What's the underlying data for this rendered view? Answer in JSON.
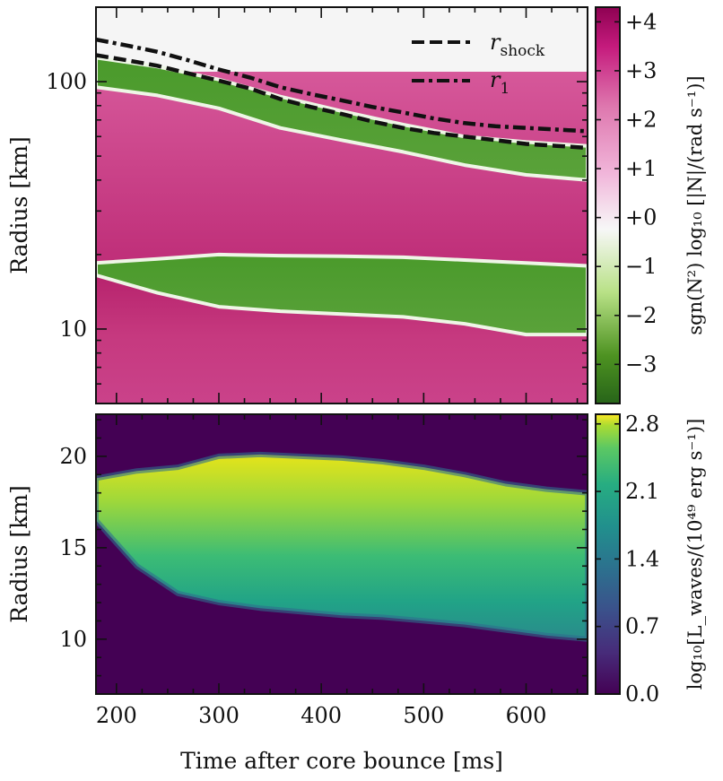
{
  "chart_data": [
    {
      "type": "heatmap",
      "panel": "top",
      "ylabel": "Radius [km]",
      "yscale": "log",
      "xlim": [
        180,
        660
      ],
      "ylim": [
        5,
        200
      ],
      "yticks": [
        {
          "value": 10,
          "label": "10"
        },
        {
          "value": 100,
          "label": "100"
        }
      ],
      "colorbar": {
        "label": "sgn(N²) log₁₀ [|N|/(rad s⁻¹)]",
        "range": [
          -3.8,
          4.3
        ],
        "colormap": "PiYG_r",
        "ticks": [
          {
            "value": 4,
            "label": "+4"
          },
          {
            "value": 3,
            "label": "+3"
          },
          {
            "value": 2,
            "label": "+2"
          },
          {
            "value": 1,
            "label": "+1"
          },
          {
            "value": 0,
            "label": "+0"
          },
          {
            "value": -1,
            "label": "−1"
          },
          {
            "value": -2,
            "label": "−2"
          },
          {
            "value": -3,
            "label": "−3"
          }
        ]
      },
      "regions": [
        {
          "name": "outer convective layer (negative N²)",
          "value": -2.5,
          "x": [
            180,
            240,
            300,
            360,
            420,
            480,
            540,
            600,
            660
          ],
          "lower": [
            95,
            88,
            78,
            65,
            58,
            52,
            46,
            42,
            40
          ],
          "upper": [
            125,
            115,
            102,
            87,
            76,
            67,
            60,
            57,
            55
          ]
        },
        {
          "name": "inner convective layer (negative N²)",
          "value": -2.5,
          "x": [
            180,
            240,
            300,
            360,
            420,
            480,
            540,
            600,
            660
          ],
          "lower": [
            16.5,
            14,
            12.3,
            11.8,
            11.5,
            11.2,
            10.5,
            9.5,
            9.5
          ],
          "upper": [
            18.5,
            19.2,
            20,
            19.8,
            19.7,
            19.5,
            19,
            18.5,
            18
          ]
        }
      ],
      "series": [
        {
          "name": "r_shock",
          "style": "dashed",
          "x": [
            180,
            210,
            240,
            270,
            300,
            330,
            360,
            390,
            420,
            450,
            480,
            510,
            540,
            570,
            600,
            630,
            660
          ],
          "y": [
            128,
            122,
            116,
            108,
            101,
            94,
            85,
            79,
            74,
            69,
            65,
            62,
            60,
            58,
            56,
            55,
            54
          ]
        },
        {
          "name": "r_1",
          "style": "dashdot",
          "x": [
            180,
            210,
            240,
            270,
            300,
            330,
            360,
            390,
            420,
            450,
            480,
            510,
            540,
            570,
            600,
            630,
            660
          ],
          "y": [
            148,
            140,
            132,
            122,
            112,
            104,
            95,
            89,
            84,
            79,
            75,
            71,
            68,
            66,
            65,
            64,
            63
          ]
        }
      ],
      "legend": {
        "placement": "top-right",
        "entries": [
          {
            "style": "dashed",
            "symbol": "r",
            "subscript": "shock"
          },
          {
            "style": "dashdot",
            "symbol": "r",
            "subscript": "1"
          }
        ]
      }
    },
    {
      "type": "heatmap",
      "panel": "bottom",
      "xlabel": "Time after core bounce [ms]",
      "ylabel": "Radius [km]",
      "xlim": [
        180,
        660
      ],
      "ylim": [
        7,
        22.3
      ],
      "xticks": [
        200,
        300,
        400,
        500,
        600
      ],
      "yticks": [
        10,
        15,
        20
      ],
      "colorbar": {
        "label": "log₁₀[L_waves/(10⁴⁹ erg s⁻¹)]",
        "range": [
          0,
          2.9
        ],
        "colormap": "viridis",
        "ticks": [
          {
            "value": 0,
            "label": "0.0"
          },
          {
            "value": 0.7,
            "label": "0.7"
          },
          {
            "value": 1.4,
            "label": "1.4"
          },
          {
            "value": 2.1,
            "label": "2.1"
          },
          {
            "value": 2.8,
            "label": "2.8"
          }
        ]
      },
      "regions": [
        {
          "name": "wave luminosity region",
          "x": [
            180,
            220,
            260,
            300,
            340,
            380,
            420,
            460,
            500,
            540,
            580,
            620,
            660
          ],
          "lower": [
            16.5,
            14,
            12.5,
            12,
            11.7,
            11.5,
            11.3,
            11.2,
            11,
            10.8,
            10.5,
            10.2,
            10
          ],
          "upper": [
            18.8,
            19.2,
            19.4,
            20,
            20.1,
            20,
            19.9,
            19.7,
            19.4,
            19,
            18.5,
            18.2,
            18
          ],
          "value_low": 1.3,
          "value_high": 2.8
        }
      ]
    }
  ],
  "colors": {
    "magenta_strong": "#b0185f",
    "magenta_mid": "#d5508f",
    "green": "#4f9a2e",
    "top_background": "#f5f5f5",
    "viridis_dark": "#440154"
  }
}
